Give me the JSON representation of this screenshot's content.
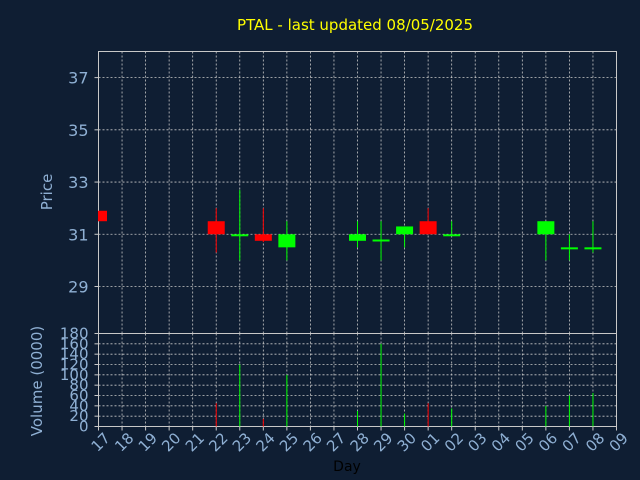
{
  "chart_data": {
    "type": "candlestick",
    "title": "PTAL - last updated 08/05/2025",
    "colors": {
      "background": "#0f1e33",
      "up": "#00ff00",
      "down": "#ff0000",
      "grid": "#c8c8c8",
      "axis_text": "#8fb0d4",
      "title": "#ffff00"
    },
    "price_panel": {
      "ylabel": "Price",
      "ylim": [
        27.2,
        38.0
      ],
      "yticks": [
        29,
        31,
        33,
        35,
        37
      ],
      "grid": true
    },
    "volume_panel": {
      "ylabel": "Volume (0000)",
      "ylim": [
        0,
        180
      ],
      "yticks": [
        0,
        20,
        40,
        60,
        80,
        100,
        120,
        140,
        160,
        180
      ],
      "grid": true
    },
    "xlabel": "Day",
    "x_ticks": [
      "17",
      "18",
      "19",
      "20",
      "21",
      "22",
      "23",
      "24",
      "25",
      "26",
      "27",
      "28",
      "29",
      "30",
      "01",
      "02",
      "03",
      "04",
      "05",
      "06",
      "07",
      "08",
      "09"
    ],
    "candles": [
      {
        "day": "17",
        "open": 31.9,
        "high": 31.9,
        "low": 31.5,
        "close": 31.5,
        "volume": 0
      },
      {
        "day": "22",
        "open": 31.5,
        "high": 32.0,
        "low": 30.3,
        "close": 31.0,
        "volume": 45
      },
      {
        "day": "23",
        "open": 31.0,
        "high": 32.7,
        "low": 30.0,
        "close": 31.0,
        "volume": 120
      },
      {
        "day": "24",
        "open": 31.0,
        "high": 32.0,
        "low": 30.7,
        "close": 30.75,
        "volume": 15
      },
      {
        "day": "25",
        "open": 30.5,
        "high": 31.5,
        "low": 30.0,
        "close": 31.0,
        "volume": 100
      },
      {
        "day": "28",
        "open": 30.75,
        "high": 31.5,
        "low": 30.5,
        "close": 31.0,
        "volume": 30
      },
      {
        "day": "29",
        "open": 30.75,
        "high": 31.5,
        "low": 30.0,
        "close": 30.8,
        "volume": 160
      },
      {
        "day": "30",
        "open": 31.0,
        "high": 31.3,
        "low": 30.5,
        "close": 31.3,
        "volume": 25
      },
      {
        "day": "01",
        "open": 31.5,
        "high": 32.0,
        "low": 31.0,
        "close": 31.0,
        "volume": 45
      },
      {
        "day": "02",
        "open": 31.0,
        "high": 31.5,
        "low": 31.0,
        "close": 31.0,
        "volume": 35
      },
      {
        "day": "06",
        "open": 31.0,
        "high": 31.5,
        "low": 30.0,
        "close": 31.5,
        "volume": 40
      },
      {
        "day": "07",
        "open": 30.5,
        "high": 31.0,
        "low": 30.0,
        "close": 30.5,
        "volume": 60
      },
      {
        "day": "08",
        "open": 30.5,
        "high": 31.5,
        "low": 30.3,
        "close": 30.5,
        "volume": 65
      }
    ]
  }
}
